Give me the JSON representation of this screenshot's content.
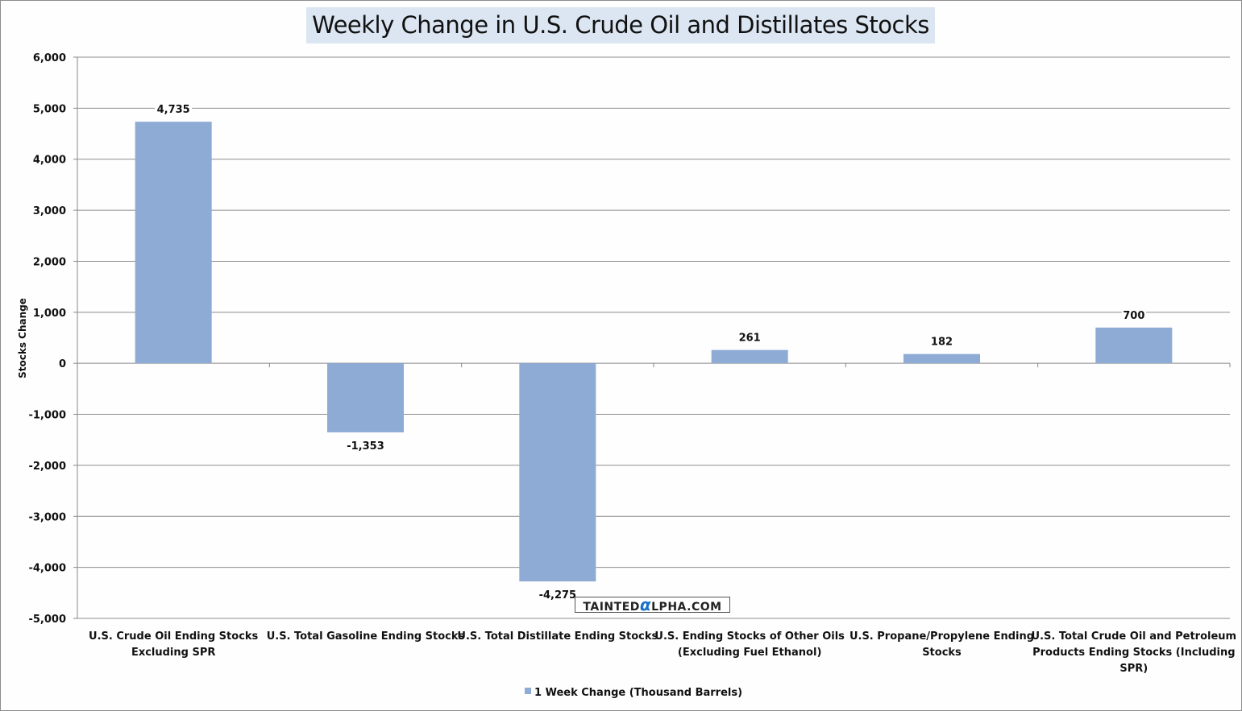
{
  "chart_data": {
    "type": "bar",
    "title": "Weekly Change in U.S. Crude Oil and Distillates Stocks",
    "xlabel": "",
    "ylabel": "Stocks Change",
    "ylim": [
      -5000,
      6000
    ],
    "yticks": [
      6000,
      5000,
      4000,
      3000,
      2000,
      1000,
      0,
      -1000,
      -2000,
      -3000,
      -4000,
      -5000
    ],
    "ytick_labels": [
      "6,000",
      "5,000",
      "4,000",
      "3,000",
      "2,000",
      "1,000",
      "0",
      "-1,000",
      "-2,000",
      "-3,000",
      "-4,000",
      "-5,000"
    ],
    "grid": true,
    "legend_position": "bottom",
    "categories": [
      [
        "U.S. Crude Oil Ending Stocks",
        "Excluding SPR"
      ],
      [
        "U.S. Total Gasoline Ending Stocks"
      ],
      [
        "U.S. Total Distillate Ending Stocks"
      ],
      [
        "U.S. Ending Stocks of Other Oils",
        "(Excluding Fuel Ethanol)"
      ],
      [
        "U.S. Propane/Propylene Ending",
        "Stocks"
      ],
      [
        "U.S. Total Crude Oil and Petroleum",
        "Products Ending Stocks (Including",
        "SPR)"
      ]
    ],
    "series": [
      {
        "name": "1 Week Change (Thousand Barrels)",
        "color": "#8eabd6",
        "values": [
          4735,
          -1353,
          -4275,
          261,
          182,
          700
        ],
        "labels": [
          "4,735",
          "-1,353",
          "-4,275",
          "261",
          "182",
          "700"
        ]
      }
    ]
  },
  "watermark": {
    "pre": "TAINTED",
    "alpha": "α",
    "post": "LPHA.COM"
  }
}
